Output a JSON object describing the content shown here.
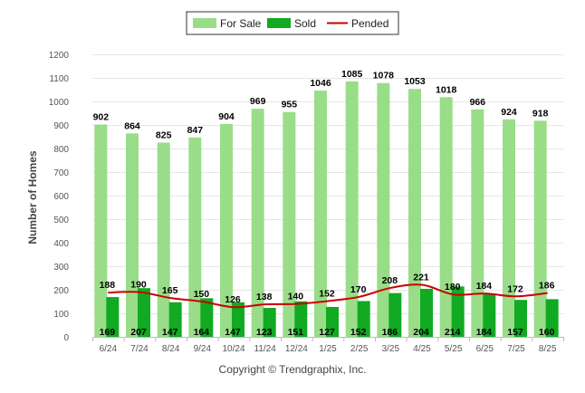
{
  "chart_data": {
    "type": "bar",
    "categories": [
      "6/24",
      "7/24",
      "8/24",
      "9/24",
      "10/24",
      "11/24",
      "12/24",
      "1/25",
      "2/25",
      "3/25",
      "4/25",
      "5/25",
      "6/25",
      "7/25",
      "8/25"
    ],
    "series": [
      {
        "name": "For Sale",
        "type": "bar",
        "color": "#99dd88",
        "values": [
          902,
          864,
          825,
          847,
          904,
          969,
          955,
          1046,
          1085,
          1078,
          1053,
          1018,
          966,
          924,
          918
        ]
      },
      {
        "name": "Sold",
        "type": "bar",
        "color": "#11aa22",
        "values": [
          169,
          207,
          147,
          164,
          147,
          123,
          151,
          127,
          152,
          186,
          204,
          214,
          184,
          157,
          160
        ]
      },
      {
        "name": "Pended",
        "type": "line",
        "color": "#cc0000",
        "values": [
          188,
          190,
          165,
          150,
          126,
          138,
          140,
          152,
          170,
          208,
          221,
          180,
          184,
          172,
          186
        ]
      }
    ],
    "ylabel": "Number of Homes",
    "xlabel": "",
    "ylim": [
      0,
      1200
    ],
    "yticks": [
      0,
      100,
      200,
      300,
      400,
      500,
      600,
      700,
      800,
      900,
      1000,
      1100,
      1200
    ],
    "grid": true,
    "legend": "top-center"
  },
  "footer": {
    "copyright": "Copyright © Trendgraphix, Inc."
  }
}
